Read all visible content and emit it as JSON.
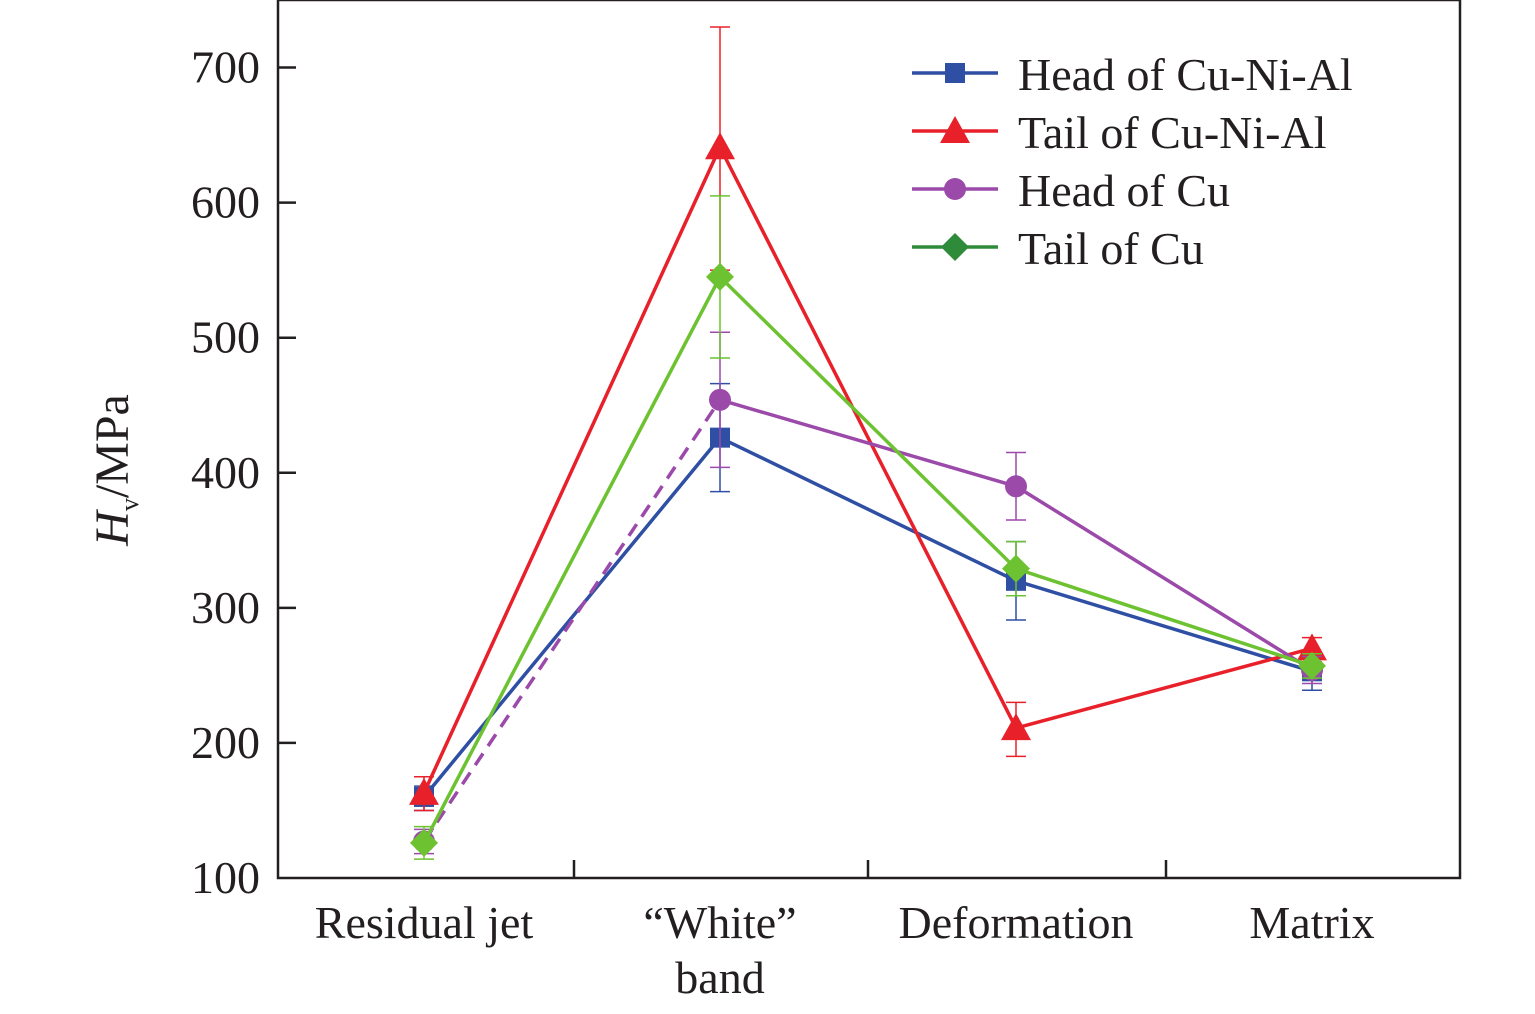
{
  "chart_data": {
    "type": "line",
    "ylabel_symbol": "H",
    "ylabel_subscript": "v",
    "ylabel_unit": "/MPa",
    "xlabel": "",
    "ylim": [
      100,
      750
    ],
    "yticks": [
      100,
      200,
      300,
      400,
      500,
      600,
      700
    ],
    "categories": [
      [
        "Residual jet"
      ],
      [
        "“White”",
        "band"
      ],
      [
        "Deformation"
      ],
      [
        "Matrix"
      ]
    ],
    "legend_position": "top-right",
    "series": [
      {
        "name": "Head of Cu-Ni-Al",
        "color": "#2e4fa3",
        "marker": "square",
        "values": [
          160,
          426,
          320,
          253
        ],
        "err_low": [
          150,
          386,
          291,
          239
        ],
        "err_high": [
          168,
          466,
          349,
          265
        ]
      },
      {
        "name": "Tail of Cu-Ni-Al",
        "color": "#e8202a",
        "marker": "triangle",
        "values": [
          163,
          641,
          211,
          270
        ],
        "err_low": [
          150,
          550,
          190,
          260
        ],
        "err_high": [
          175,
          730,
          230,
          278
        ]
      },
      {
        "name": "Head of Cu",
        "color": "#9b4aaa",
        "marker": "circle",
        "values": [
          127,
          454,
          390,
          254
        ],
        "err_low": [
          118,
          404,
          365,
          244
        ],
        "err_high": [
          136,
          504,
          415,
          264
        ],
        "dashed_first_segment": true
      },
      {
        "name": "Tail of Cu",
        "color": "#6cc230",
        "legend_color": "#2e8b3a",
        "marker": "diamond",
        "values": [
          126,
          545,
          329,
          257
        ],
        "err_low": [
          114,
          485,
          309,
          248
        ],
        "err_high": [
          138,
          605,
          349,
          266
        ]
      }
    ]
  }
}
